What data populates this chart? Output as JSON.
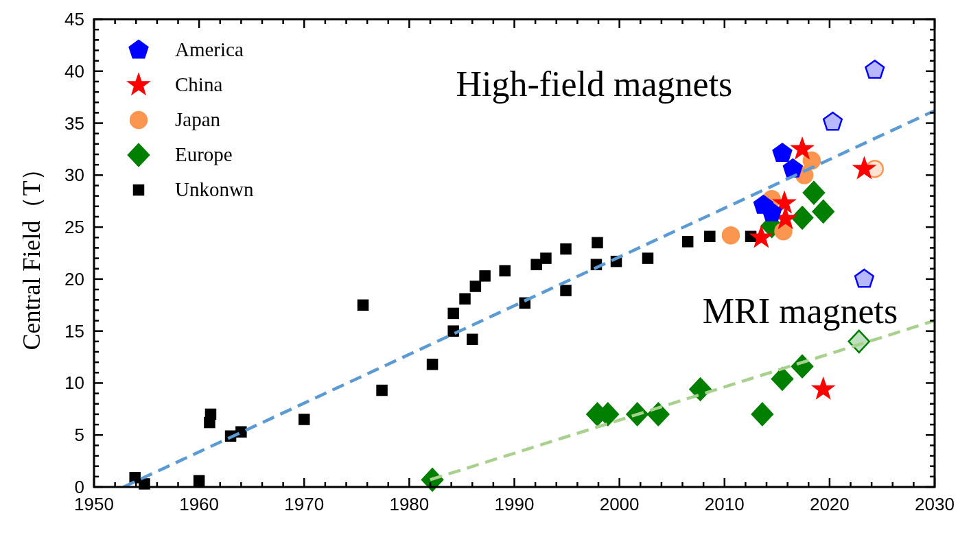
{
  "chart_data": {
    "type": "scatter",
    "ylabel": "Central Field（T）",
    "xlim": [
      1950,
      2030
    ],
    "xticks": [
      1950,
      1960,
      1970,
      1980,
      1990,
      2000,
      2010,
      2020,
      2030
    ],
    "ylim": [
      0,
      45
    ],
    "yticks": [
      0,
      5,
      10,
      15,
      20,
      25,
      30,
      35,
      40,
      45
    ],
    "grid": false,
    "legend": "top left",
    "annotations": [
      "High-field magnets",
      "MRI magnets"
    ],
    "series": [
      {
        "name": "America",
        "color": "#0000ff",
        "x": [
          2015.5,
          2016.5,
          2013.7,
          2014.5,
          2020.3,
          2024.3,
          2023.3
        ],
        "values": [
          32.1,
          30.6,
          27.1,
          26.4,
          35.1,
          40.1,
          20.0
        ],
        "colors": [
          "#0000ff",
          "#0000ff",
          "#0000ff",
          "#0000ff",
          "#b8b8ff",
          "#b8b8ff",
          "#b8b8ff"
        ]
      },
      {
        "name": "China",
        "color": "#ff0000",
        "marker": "star",
        "x": [
          2017.4,
          2023.3,
          2015.7,
          2015.8,
          2013.5,
          2019.4
        ],
        "values": [
          32.5,
          30.6,
          27.3,
          25.8,
          24.0,
          9.4
        ]
      },
      {
        "name": "Japan",
        "color": "#fa9650",
        "marker": "circle",
        "x": [
          2018.3,
          2017.6,
          2014.5,
          2015.6,
          2010.6,
          2024.3
        ],
        "values": [
          31.4,
          30.0,
          27.7,
          24.6,
          24.2,
          30.6
        ],
        "colors": [
          "#fa9650",
          "#fa9650",
          "#fa9650",
          "#fa9650",
          "#fa9650",
          "#fde3d2"
        ]
      },
      {
        "name": "Europe",
        "color": "#007f00",
        "marker": "diamond",
        "x": [
          2018.5,
          2017.4,
          2019.4,
          2014.5,
          1982.2,
          1997.9,
          1998.9,
          2001.7,
          2003.7,
          2007.7,
          2013.6,
          2015.5,
          2017.4,
          2022.8
        ],
        "values": [
          28.3,
          25.9,
          26.5,
          25.1,
          0.7,
          7.0,
          7.0,
          7.0,
          7.0,
          9.4,
          7.0,
          10.4,
          11.6,
          14.0
        ],
        "colors": [
          "#007f00",
          "#007f00",
          "#007f00",
          "#007f00",
          "#007f00",
          "#007f00",
          "#007f00",
          "#007f00",
          "#007f00",
          "#007f00",
          "#007f00",
          "#007f00",
          "#007f00",
          "#bfe0bf"
        ]
      },
      {
        "name": "Unkonwn",
        "color": "#000000",
        "marker": "square",
        "x": [
          1953.9,
          1954.8,
          1960,
          1961,
          1961.1,
          1963,
          1964,
          1970,
          1975.6,
          1977.4,
          1982.2,
          1984.2,
          1984.2,
          1985.3,
          1986.0,
          1986.3,
          1987.2,
          1989.1,
          1991.0,
          1992.1,
          1993.0,
          1994.9,
          1994.9,
          1997.9,
          1997.8,
          1999.7,
          2002.7,
          2006.5,
          2008.6,
          2012.5
        ],
        "values": [
          0.9,
          0.3,
          0.6,
          6.2,
          7.0,
          4.9,
          5.3,
          6.5,
          17.5,
          9.3,
          11.8,
          16.7,
          15.0,
          18.1,
          14.2,
          19.3,
          20.3,
          20.8,
          17.7,
          21.4,
          22.0,
          22.9,
          18.9,
          23.5,
          21.4,
          21.7,
          22.0,
          23.6,
          24.1,
          24.1
        ]
      },
      {
        "type": "line",
        "color": "#5b9bd5",
        "line_style": "dashed",
        "x": [
          1952.8,
          2030
        ],
        "values": [
          0,
          36.2
        ]
      },
      {
        "type": "line",
        "color": "#a9d18e",
        "line_style": "dashed",
        "x": [
          1982.0,
          2030
        ],
        "values": [
          0.7,
          16.0
        ]
      }
    ]
  }
}
